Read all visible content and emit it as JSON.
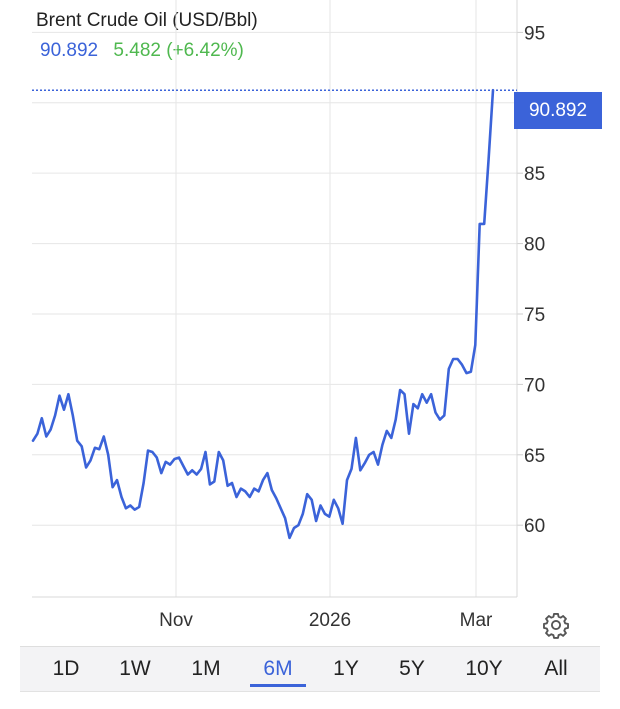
{
  "header": {
    "title": "Brent Crude Oil (USD/Bbl)",
    "last_price": "90.892",
    "change": "5.482 (+6.42%)"
  },
  "price_badge": "90.892",
  "ranges": [
    {
      "label": "1D",
      "active": false
    },
    {
      "label": "1W",
      "active": false
    },
    {
      "label": "1M",
      "active": false
    },
    {
      "label": "6M",
      "active": true
    },
    {
      "label": "1Y",
      "active": false
    },
    {
      "label": "5Y",
      "active": false
    },
    {
      "label": "10Y",
      "active": false
    },
    {
      "label": "All",
      "active": false
    }
  ],
  "icons": {
    "settings": "gear-icon"
  },
  "colors": {
    "line": "#3b63d9",
    "change": "#4fb84f",
    "badge": "#3b63d9"
  },
  "chart_data": {
    "type": "line",
    "title": "Brent Crude Oil (USD/Bbl)",
    "x_tick_labels": [
      "Nov",
      "2026",
      "Mar"
    ],
    "y_ticks": [
      60,
      65,
      70,
      75,
      80,
      85,
      90,
      95
    ],
    "ylim": [
      54.9,
      97.3
    ],
    "grid": true,
    "last_value": 90.892,
    "series": [
      {
        "values": [
          66.0,
          66.5,
          67.6,
          66.3,
          66.8,
          67.8,
          69.2,
          68.2,
          69.3,
          67.8,
          66.0,
          65.6,
          64.1,
          64.6,
          65.5,
          65.4,
          66.3,
          65.0,
          62.7,
          63.2,
          62.0,
          61.2,
          61.4,
          61.1,
          61.3,
          63.0,
          65.3,
          65.2,
          64.8,
          63.7,
          64.5,
          64.3,
          64.7,
          64.8,
          64.2,
          63.6,
          63.9,
          63.6,
          64.0,
          65.2,
          62.9,
          63.1,
          65.2,
          64.6,
          62.8,
          63.0,
          62.0,
          62.6,
          62.4,
          62.0,
          62.6,
          62.4,
          63.2,
          63.7,
          62.5,
          61.9,
          61.2,
          60.5,
          59.1,
          59.8,
          60.0,
          60.8,
          62.2,
          61.8,
          60.3,
          61.4,
          60.8,
          60.6,
          61.8,
          61.2,
          60.1,
          63.2,
          64.0,
          66.2,
          63.9,
          64.4,
          65.0,
          65.2,
          64.3,
          65.7,
          66.7,
          66.2,
          67.5,
          69.6,
          69.3,
          66.5,
          68.6,
          68.3,
          69.3,
          68.7,
          69.3,
          68.0,
          67.5,
          67.8,
          71.1,
          71.8,
          71.8,
          71.4,
          70.8,
          70.9,
          72.8,
          81.4,
          81.4,
          86.0,
          90.892
        ]
      }
    ]
  }
}
